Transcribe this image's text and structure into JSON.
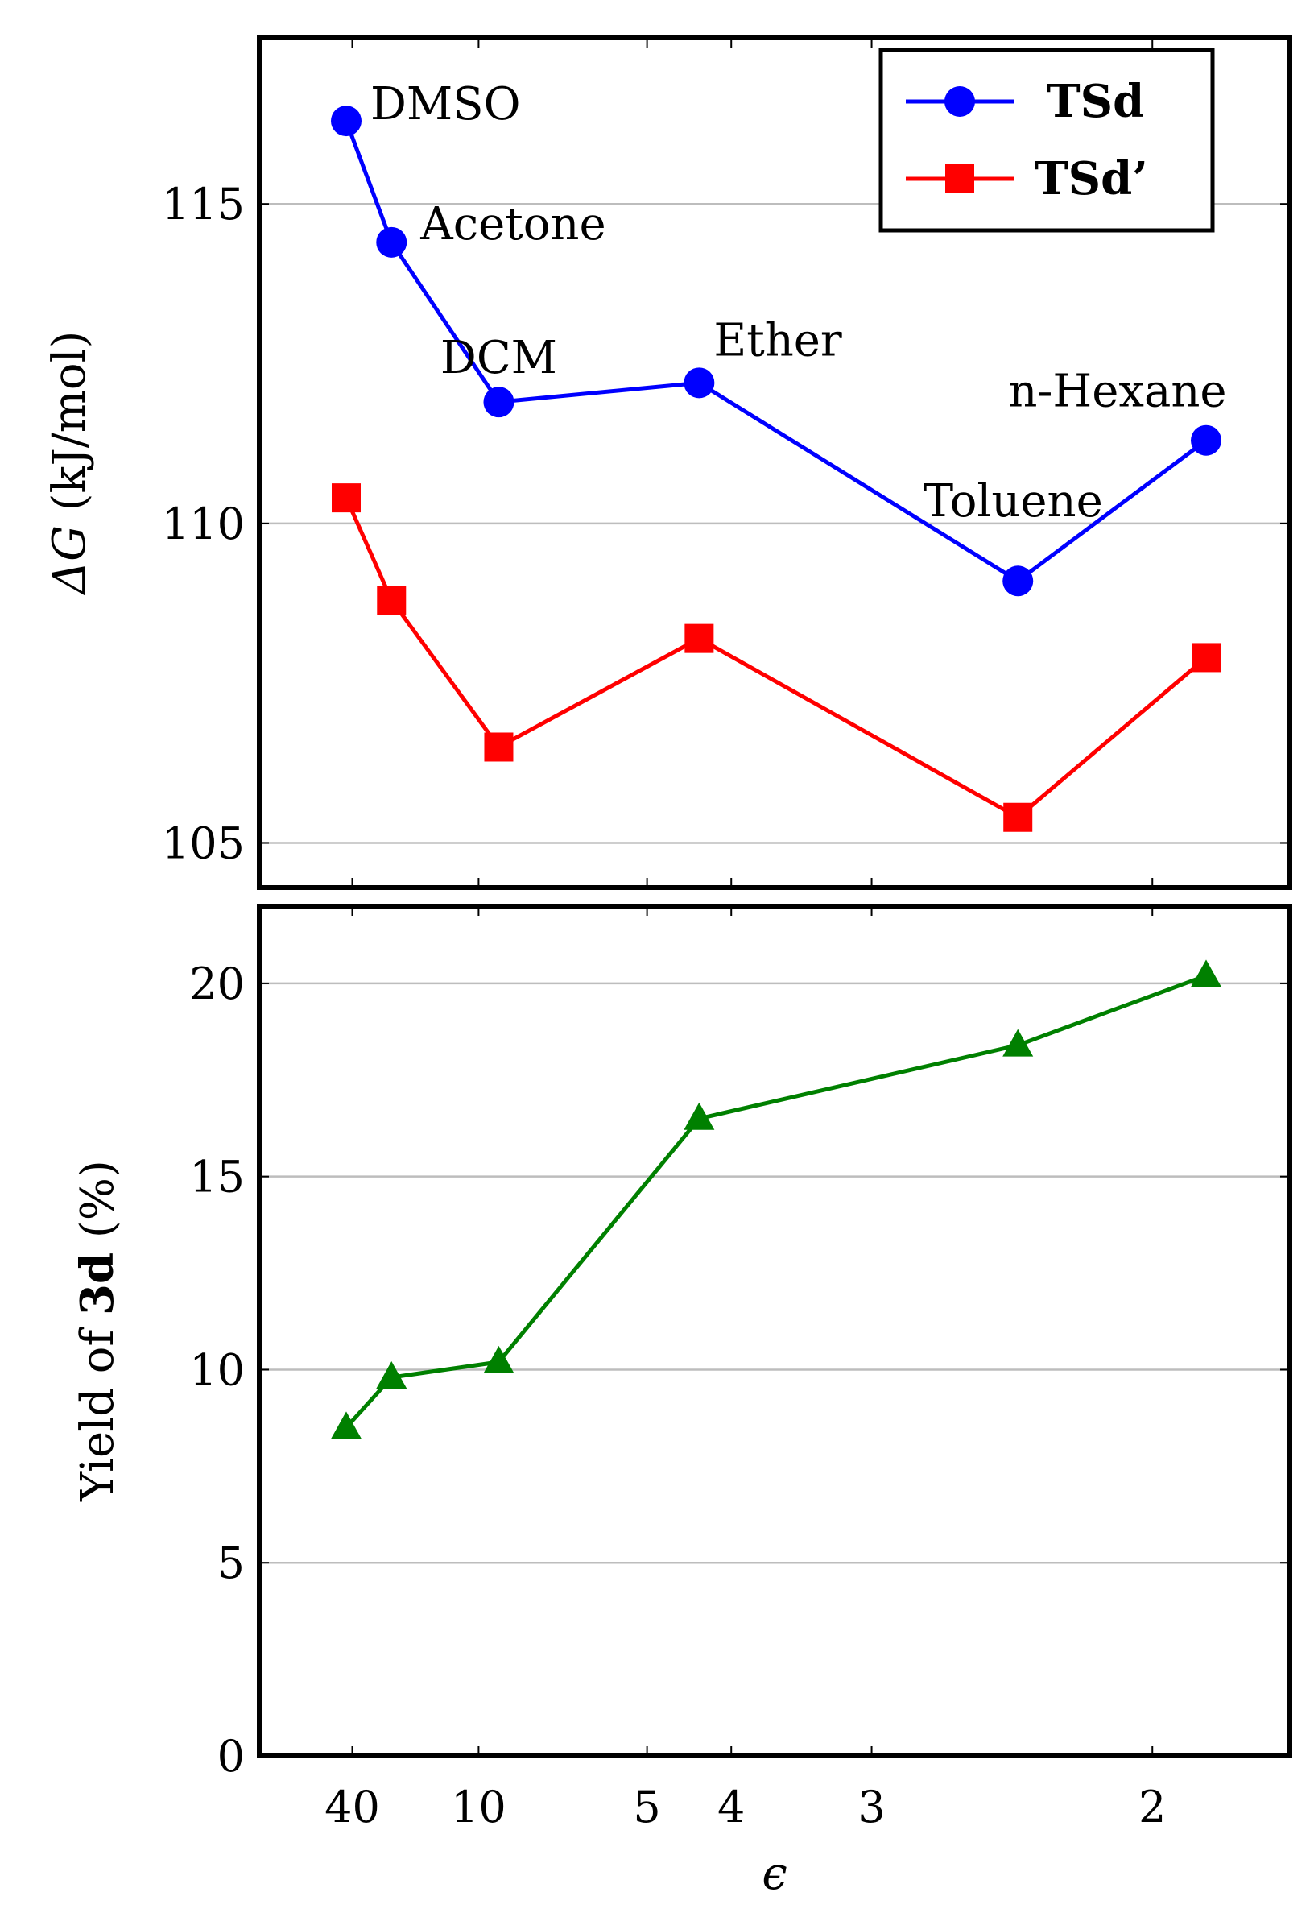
{
  "chart_data": [
    {
      "type": "line",
      "panel": "top",
      "ylabel": "ΔG (kJ/mol)",
      "ylabel_symbol": "ΔG",
      "ylabel_unit": " (kJ/mol)",
      "ylim": [
        104.3,
        117.6
      ],
      "yticks": [
        105,
        110,
        115
      ],
      "grid": true,
      "legend_placement": "top-right",
      "solvents": [
        "DMSO",
        "Acetone",
        "DCM",
        "Ether",
        "Toluene",
        "n-Hexane"
      ],
      "epsilon": [
        46.7,
        20.7,
        8.93,
        4.33,
        2.38,
        1.88
      ],
      "series": [
        {
          "name": "TSd",
          "color": "#0000ff",
          "marker": "circle",
          "values": [
            116.3,
            114.4,
            111.9,
            112.2,
            109.1,
            111.3
          ]
        },
        {
          "name": "TSd’",
          "color": "#ff0000",
          "marker": "square",
          "values": [
            110.4,
            108.8,
            106.5,
            108.2,
            105.4,
            107.9
          ]
        }
      ]
    },
    {
      "type": "line",
      "panel": "bottom",
      "ylabel_prefix": "Yield of ",
      "ylabel_bold": "3d",
      "ylabel_suffix": " (%)",
      "ylim": [
        0,
        22
      ],
      "yticks": [
        0,
        5,
        10,
        15,
        20
      ],
      "grid": true,
      "epsilon": [
        46.7,
        20.7,
        8.93,
        4.33,
        2.38,
        1.88
      ],
      "series": [
        {
          "name": "Yield of 3d",
          "color": "#008000",
          "marker": "triangle",
          "values": [
            8.5,
            9.8,
            10.2,
            16.5,
            18.4,
            20.2
          ]
        }
      ]
    }
  ],
  "x_axis": {
    "label": "ϵ",
    "scale": "inverse",
    "ticks": [
      40,
      10,
      5,
      4,
      3,
      2
    ]
  }
}
